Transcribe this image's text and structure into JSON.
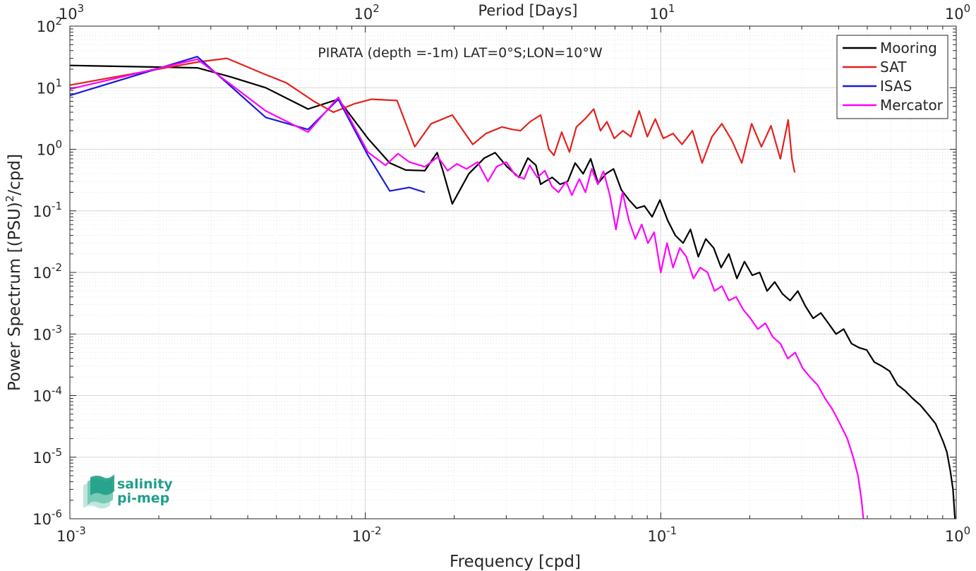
{
  "chart_data": {
    "type": "line",
    "title": "PIRATA (depth =-1m) LAT=0°S;LON=10°W",
    "xlabel": "Frequency [cpd]",
    "ylabel_main": "Power Spectrum [(PSU)",
    "ylabel_sup": "2",
    "ylabel_tail": "/cpd]",
    "top_label": "Period [Days]",
    "x_scale": "log",
    "y_scale": "log",
    "xlim": [
      0.001,
      1
    ],
    "ylim": [
      1e-06,
      100
    ],
    "grid": true,
    "legend_position": "top-right",
    "x_ticks": [
      {
        "base": "10",
        "exp": "-3"
      },
      {
        "base": "10",
        "exp": "-2"
      },
      {
        "base": "10",
        "exp": "-1"
      },
      {
        "base": "10",
        "exp": "0"
      }
    ],
    "top_ticks": [
      {
        "base": "10",
        "exp": "3"
      },
      {
        "base": "10",
        "exp": "2"
      },
      {
        "base": "10",
        "exp": "1"
      },
      {
        "base": "10",
        "exp": "0"
      }
    ],
    "y_ticks": [
      {
        "base": "10",
        "exp": "-6"
      },
      {
        "base": "10",
        "exp": "-5"
      },
      {
        "base": "10",
        "exp": "-4"
      },
      {
        "base": "10",
        "exp": "-3"
      },
      {
        "base": "10",
        "exp": "-2"
      },
      {
        "base": "10",
        "exp": "-1"
      },
      {
        "base": "10",
        "exp": "0"
      },
      {
        "base": "10",
        "exp": "1"
      },
      {
        "base": "10",
        "exp": "2"
      }
    ],
    "series": [
      {
        "name": "Mooring",
        "color": "#000000",
        "x": [
          0.001,
          0.0027,
          0.0035,
          0.0046,
          0.0064,
          0.0081,
          0.0102,
          0.0121,
          0.0137,
          0.0159,
          0.0175,
          0.0183,
          0.0197,
          0.0224,
          0.0253,
          0.0275,
          0.0302,
          0.0331,
          0.0355,
          0.0378,
          0.0392,
          0.0406,
          0.0429,
          0.0456,
          0.0484,
          0.0513,
          0.0546,
          0.0579,
          0.0614,
          0.0652,
          0.0692,
          0.0735,
          0.0781,
          0.0829,
          0.088,
          0.0935,
          0.0993,
          0.1055,
          0.112,
          0.119,
          0.126,
          0.134,
          0.142,
          0.151,
          0.16,
          0.17,
          0.181,
          0.192,
          0.204,
          0.216,
          0.229,
          0.243,
          0.258,
          0.274,
          0.291,
          0.309,
          0.328,
          0.348,
          0.369,
          0.392,
          0.416,
          0.442,
          0.469,
          0.498,
          0.528,
          0.561,
          0.595,
          0.632,
          0.671,
          0.712,
          0.756,
          0.802,
          0.851,
          0.903,
          0.93,
          0.955,
          0.975,
          0.99
        ],
        "y": [
          23,
          21,
          15,
          10,
          4.5,
          6.5,
          1.5,
          0.6,
          0.46,
          0.45,
          0.88,
          0.45,
          0.13,
          0.4,
          0.72,
          0.88,
          0.52,
          0.35,
          0.72,
          0.55,
          0.27,
          0.3,
          0.35,
          0.27,
          0.3,
          0.6,
          0.4,
          0.7,
          0.28,
          0.4,
          0.48,
          0.22,
          0.15,
          0.11,
          0.12,
          0.08,
          0.15,
          0.07,
          0.04,
          0.03,
          0.05,
          0.018,
          0.035,
          0.025,
          0.012,
          0.02,
          0.008,
          0.015,
          0.009,
          0.01,
          0.005,
          0.007,
          0.0045,
          0.0035,
          0.005,
          0.0028,
          0.0018,
          0.0022,
          0.0015,
          0.001,
          0.0012,
          0.0007,
          0.0006,
          0.00055,
          0.00035,
          0.0003,
          0.00025,
          0.00015,
          0.00012,
          9e-05,
          7e-05,
          5e-05,
          3.5e-05,
          1.8e-05,
          1.2e-05,
          6e-06,
          3e-06,
          1e-06
        ]
      },
      {
        "name": "SAT",
        "color": "#e4211c",
        "x": [
          0.001,
          0.0027,
          0.0034,
          0.0045,
          0.0054,
          0.0067,
          0.0078,
          0.0092,
          0.0105,
          0.0128,
          0.0147,
          0.0167,
          0.0197,
          0.0231,
          0.0256,
          0.029,
          0.0315,
          0.0335,
          0.0361,
          0.0392,
          0.0418,
          0.0435,
          0.0462,
          0.0491,
          0.0518,
          0.0554,
          0.0593,
          0.0625,
          0.0657,
          0.0696,
          0.0744,
          0.0792,
          0.0845,
          0.09,
          0.0958,
          0.102,
          0.11,
          0.118,
          0.128,
          0.138,
          0.149,
          0.161,
          0.174,
          0.188,
          0.203,
          0.219,
          0.236,
          0.254,
          0.27,
          0.278,
          0.284
        ],
        "y": [
          11,
          26,
          30,
          17,
          12,
          6,
          4,
          5.5,
          6.5,
          6.2,
          1.1,
          2.6,
          3.6,
          1.2,
          1.8,
          2.3,
          2.1,
          2.0,
          2.8,
          3.6,
          1.0,
          0.8,
          1.9,
          0.9,
          2.3,
          3.1,
          4.5,
          2.0,
          2.8,
          1.5,
          2.0,
          1.6,
          4.2,
          1.6,
          3.1,
          1.5,
          1.8,
          1.2,
          2.0,
          0.6,
          1.6,
          2.6,
          1.4,
          0.6,
          2.6,
          1.1,
          2.4,
          0.7,
          3.0,
          0.7,
          0.42
        ]
      },
      {
        "name": "ISAS",
        "color": "#1a1ad8",
        "x": [
          0.001,
          0.0027,
          0.0046,
          0.0064,
          0.0081,
          0.0102,
          0.0121,
          0.0141,
          0.0159
        ],
        "y": [
          7.5,
          32,
          3.3,
          2.1,
          6.5,
          0.8,
          0.21,
          0.24,
          0.2
        ]
      },
      {
        "name": "Mercator",
        "color": "#ff00ff",
        "x": [
          0.001,
          0.0027,
          0.0046,
          0.0064,
          0.0081,
          0.0102,
          0.0117,
          0.0129,
          0.0141,
          0.0159,
          0.0176,
          0.019,
          0.0204,
          0.022,
          0.024,
          0.026,
          0.0278,
          0.03,
          0.0322,
          0.0345,
          0.036,
          0.0382,
          0.0405,
          0.0428,
          0.0451,
          0.0478,
          0.05,
          0.053,
          0.0556,
          0.0584,
          0.0612,
          0.064,
          0.0672,
          0.0705,
          0.0742,
          0.078,
          0.082,
          0.0862,
          0.0905,
          0.095,
          0.1,
          0.105,
          0.11,
          0.116,
          0.122,
          0.129,
          0.136,
          0.144,
          0.152,
          0.161,
          0.17,
          0.18,
          0.19,
          0.201,
          0.213,
          0.226,
          0.239,
          0.254,
          0.269,
          0.285,
          0.302,
          0.32,
          0.339,
          0.36,
          0.381,
          0.404,
          0.428,
          0.448,
          0.465,
          0.478,
          0.485
        ],
        "y": [
          9.5,
          29,
          4.2,
          1.9,
          7,
          0.9,
          0.55,
          0.85,
          0.62,
          0.52,
          0.75,
          0.45,
          0.58,
          0.48,
          0.62,
          0.3,
          0.52,
          0.62,
          0.38,
          0.33,
          0.55,
          0.35,
          0.45,
          0.25,
          0.2,
          0.3,
          0.18,
          0.33,
          0.2,
          0.48,
          0.27,
          0.44,
          0.18,
          0.05,
          0.2,
          0.07,
          0.035,
          0.06,
          0.03,
          0.045,
          0.01,
          0.03,
          0.012,
          0.025,
          0.018,
          0.008,
          0.012,
          0.01,
          0.005,
          0.006,
          0.0035,
          0.004,
          0.0025,
          0.0018,
          0.0012,
          0.0015,
          0.0009,
          0.0007,
          0.0004,
          0.0005,
          0.00028,
          0.0002,
          0.00015,
          9e-05,
          6e-05,
          3.5e-05,
          2e-05,
          1e-05,
          5e-06,
          2e-06,
          1e-06
        ]
      }
    ]
  },
  "logo": {
    "line1": "salinity",
    "line2": "pi-mep",
    "color": "#1f9f8a"
  }
}
